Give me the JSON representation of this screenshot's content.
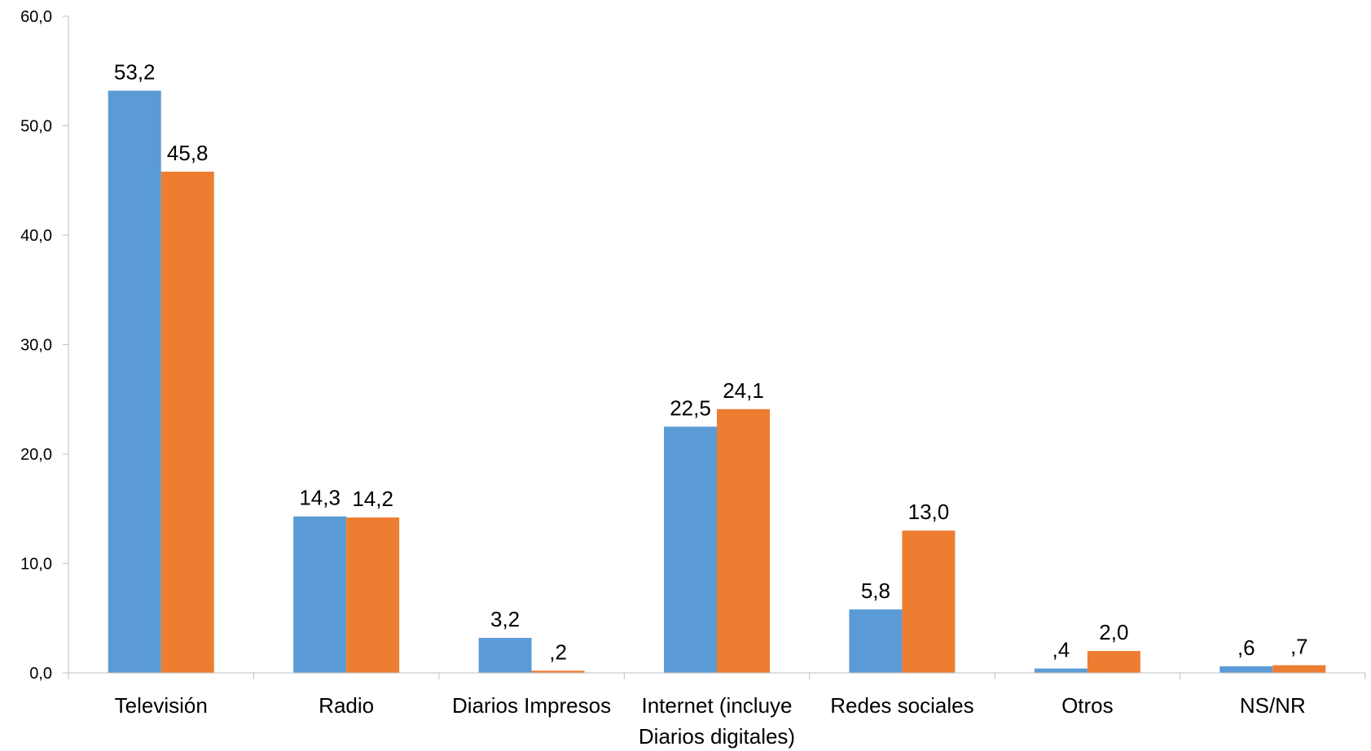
{
  "chart_data": {
    "type": "bar",
    "categories": [
      [
        "Televisión"
      ],
      [
        "Radio"
      ],
      [
        "Diarios Impresos"
      ],
      [
        "Internet (incluye",
        "Diarios digitales)"
      ],
      [
        "Redes sociales"
      ],
      [
        "Otros"
      ],
      [
        "NS/NR"
      ]
    ],
    "series": [
      {
        "color": "#5B9BD5",
        "values": [
          53.2,
          14.3,
          3.2,
          22.5,
          5.8,
          0.4,
          0.6
        ],
        "labels": [
          "53,2",
          "14,3",
          "3,2",
          "22,5",
          "5,8",
          ",4",
          ",6"
        ]
      },
      {
        "color": "#ED7D31",
        "values": [
          45.8,
          14.2,
          0.2,
          24.1,
          13.0,
          2.0,
          0.7
        ],
        "labels": [
          "45,8",
          "14,2",
          ",2",
          "24,1",
          "13,0",
          "2,0",
          ",7"
        ]
      }
    ],
    "ylim": [
      0,
      60
    ],
    "yticks": [
      0,
      10,
      20,
      30,
      40,
      50,
      60
    ],
    "ytick_labels": [
      "0,0",
      "10,0",
      "20,0",
      "30,0",
      "40,0",
      "50,0",
      "60,0"
    ],
    "grid": false,
    "legend": "none",
    "axis_color": "#BFBFBF"
  }
}
